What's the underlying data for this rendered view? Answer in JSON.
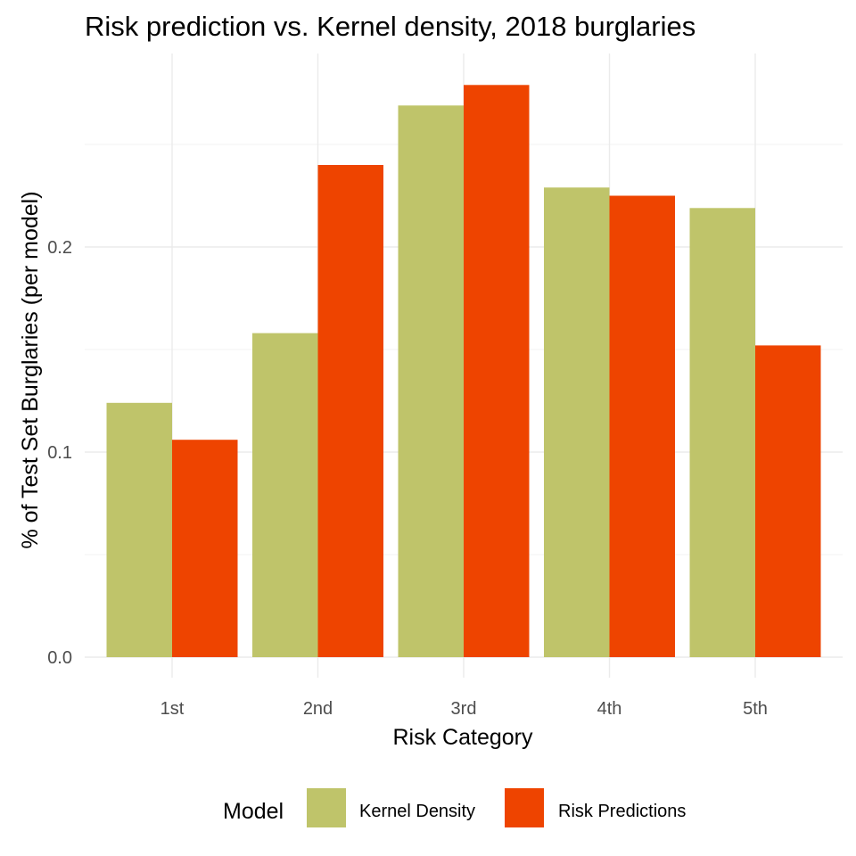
{
  "chart_data": {
    "type": "bar",
    "title": "Risk prediction vs. Kernel density, 2018 burglaries",
    "xlabel": "Risk Category",
    "ylabel": "% of Test Set Burglaries (per model)",
    "categories": [
      "1st",
      "2nd",
      "3rd",
      "4th",
      "5th"
    ],
    "series": [
      {
        "name": "Kernel Density",
        "color": "#bfc46a",
        "values": [
          0.124,
          0.158,
          0.269,
          0.229,
          0.219
        ]
      },
      {
        "name": "Risk Predictions",
        "color": "#ee4400",
        "values": [
          0.106,
          0.24,
          0.279,
          0.225,
          0.152
        ]
      }
    ],
    "ylim": [
      0,
      0.28
    ],
    "yticks": [
      0.0,
      0.1,
      0.2
    ],
    "ytick_labels": [
      "0.0",
      "0.1",
      "0.2"
    ],
    "grid": true,
    "legend": {
      "title": "Model",
      "position": "bottom"
    }
  }
}
